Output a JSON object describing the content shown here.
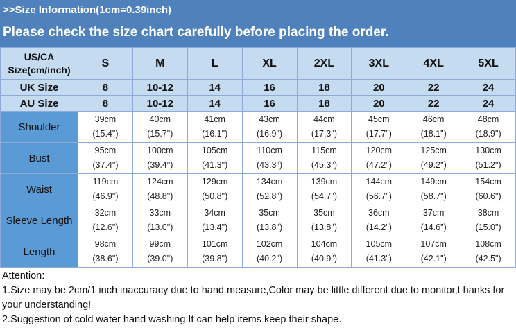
{
  "banner": {
    "line1": ">>Size Information(1cm=0.39inch)",
    "line2": "Please check the size chart carefully before placing the order."
  },
  "size_header": {
    "label": "US/CA Size(cm/inch)",
    "sizes": [
      "S",
      "M",
      "L",
      "XL",
      "2XL",
      "3XL",
      "4XL",
      "5XL"
    ]
  },
  "uk": {
    "label": "UK Size",
    "values": [
      "8",
      "10-12",
      "14",
      "16",
      "18",
      "20",
      "22",
      "24"
    ]
  },
  "au": {
    "label": "AU Size",
    "values": [
      "8",
      "10-12",
      "14",
      "16",
      "18",
      "20",
      "22",
      "24"
    ]
  },
  "rows": [
    {
      "label": "Shoulder",
      "cm": [
        "39cm",
        "40cm",
        "41cm",
        "43cm",
        "44cm",
        "45cm",
        "46cm",
        "48cm"
      ],
      "inch": [
        "(15.4\")",
        "(15.7\")",
        "(16.1\")",
        "(16.9\")",
        "(17.3\")",
        "(17.7\")",
        "(18.1\")",
        "(18.9\")"
      ]
    },
    {
      "label": "Bust",
      "cm": [
        "95cm",
        "100cm",
        "105cm",
        "110cm",
        "115cm",
        "120cm",
        "125cm",
        "130cm"
      ],
      "inch": [
        "(37.4\")",
        "(39.4\")",
        "(41.3\")",
        "(43.3\")",
        "(45.3\")",
        "(47.2\")",
        "(49.2\")",
        "(51.2\")"
      ]
    },
    {
      "label": "Waist",
      "cm": [
        "119cm",
        "124cm",
        "129cm",
        "134cm",
        "139cm",
        "144cm",
        "149cm",
        "154cm"
      ],
      "inch": [
        "(46.9\")",
        "(48.8\")",
        "(50.8\")",
        "(52.8\")",
        "(54.7\")",
        "(56.7\")",
        "(58.7\")",
        "(60.6\")"
      ]
    },
    {
      "label": "Sleeve Length",
      "cm": [
        "32cm",
        "33cm",
        "34cm",
        "35cm",
        "35cm",
        "36cm",
        "37cm",
        "38cm"
      ],
      "inch": [
        "(12.6\")",
        "(13.0\")",
        "(13.4\")",
        "(13.8\")",
        "(13.8\")",
        "(14.2\")",
        "(14.6\")",
        "(15.0\")"
      ]
    },
    {
      "label": "Length",
      "cm": [
        "98cm",
        "99cm",
        "101cm",
        "102cm",
        "104cm",
        "105cm",
        "107cm",
        "108cm"
      ],
      "inch": [
        "(38.6\")",
        "(39.0\")",
        "(39.8\")",
        "(40.2\")",
        "(40.9\")",
        "(41.3\")",
        "(42.1\")",
        "(42.5\")"
      ]
    }
  ],
  "footer": {
    "title": "Attention:",
    "note1": "1.Size may be 2cm/1 inch inaccuracy due to hand measure,Color may be little different due to monitor,t hanks for your understanding!",
    "note2": "2.Suggestion of cold water hand washing.It can help items keep their shape."
  },
  "colors": {
    "banner": "#4f81bd",
    "header_cells": "#c5dbf0",
    "row_labels": "#5b9bd5"
  }
}
